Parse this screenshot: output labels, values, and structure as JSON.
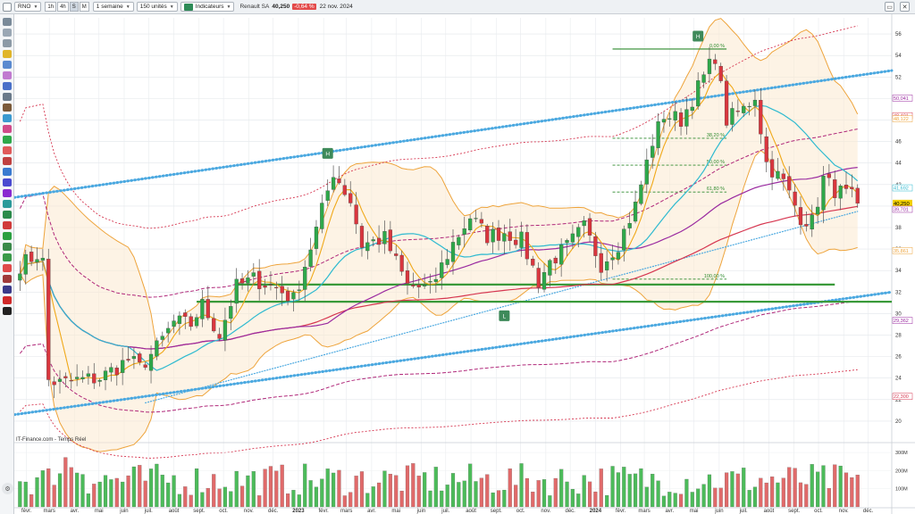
{
  "toolbar": {
    "symbol": "RNO",
    "timeframes": [
      "1h",
      "4h",
      "S",
      "M"
    ],
    "period": "1 semaine",
    "units": "150 unités",
    "indicators_label": "Indicateurs",
    "instrument": "Renault SA",
    "price": "40,250",
    "change": "-0,64 %",
    "date": "22 nov. 2024",
    "window_buttons": [
      "▭",
      "✕"
    ]
  },
  "footer": {
    "source": "IT-Finance.com - Temps Réel"
  },
  "colors": {
    "bull": "#2ea84a",
    "bear": "#d9363e",
    "ma_fast": "#f0a818",
    "ma_mid": "#2ebad0",
    "ma_long": "#9a2aa0",
    "ma_longest": "#d63650",
    "bollinger": "#eea43c",
    "trend": "#4aa8e0",
    "fib": "#2e8a2e",
    "envelope": "#b0287a",
    "support": "#3a9a3a"
  },
  "chart_data": {
    "type": "candlestick",
    "instrument": "Renault SA (RNO)",
    "timeframe": "1 semaine",
    "ylim": [
      18.5,
      57.5
    ],
    "y_ticks": [
      20,
      22,
      24,
      26,
      28,
      30,
      32,
      34,
      36,
      38,
      40,
      42,
      44,
      46,
      48,
      50,
      52,
      54,
      56
    ],
    "y_tick_labels": [
      "20",
      "22",
      "24",
      "26",
      "28",
      "30",
      "32",
      "34",
      "36",
      "38",
      "40",
      "42",
      "44",
      "46",
      "48",
      "50",
      "52",
      "54",
      "56"
    ],
    "x_start": "2022-01-17",
    "x_end": "2024-12-30",
    "x_ticks": [
      {
        "label": "févr.",
        "date": "2022-02-01"
      },
      {
        "label": "mars",
        "date": "2022-03-01"
      },
      {
        "label": "avr.",
        "date": "2022-04-01"
      },
      {
        "label": "mai",
        "date": "2022-05-01"
      },
      {
        "label": "juin",
        "date": "2022-06-01"
      },
      {
        "label": "juil.",
        "date": "2022-07-01"
      },
      {
        "label": "août",
        "date": "2022-08-01"
      },
      {
        "label": "sept.",
        "date": "2022-09-01"
      },
      {
        "label": "oct.",
        "date": "2022-10-01"
      },
      {
        "label": "nov.",
        "date": "2022-11-01"
      },
      {
        "label": "déc.",
        "date": "2022-12-01"
      },
      {
        "label": "2023",
        "date": "2023-01-01",
        "bold": true
      },
      {
        "label": "févr.",
        "date": "2023-02-01"
      },
      {
        "label": "mars",
        "date": "2023-03-01"
      },
      {
        "label": "avr.",
        "date": "2023-04-01"
      },
      {
        "label": "mai",
        "date": "2023-05-01"
      },
      {
        "label": "juin",
        "date": "2023-06-01"
      },
      {
        "label": "juil.",
        "date": "2023-07-01"
      },
      {
        "label": "août",
        "date": "2023-08-01"
      },
      {
        "label": "sept.",
        "date": "2023-09-01"
      },
      {
        "label": "oct.",
        "date": "2023-10-01"
      },
      {
        "label": "nov.",
        "date": "2023-11-01"
      },
      {
        "label": "déc.",
        "date": "2023-12-01"
      },
      {
        "label": "2024",
        "date": "2024-01-01",
        "bold": true
      },
      {
        "label": "févr.",
        "date": "2024-02-01"
      },
      {
        "label": "mars",
        "date": "2024-03-01"
      },
      {
        "label": "avr.",
        "date": "2024-04-01"
      },
      {
        "label": "mai",
        "date": "2024-05-01"
      },
      {
        "label": "juin",
        "date": "2024-06-01"
      },
      {
        "label": "juil.",
        "date": "2024-07-01"
      },
      {
        "label": "août",
        "date": "2024-08-01"
      },
      {
        "label": "sept.",
        "date": "2024-09-01"
      },
      {
        "label": "oct.",
        "date": "2024-10-01"
      },
      {
        "label": "nov.",
        "date": "2024-11-01"
      },
      {
        "label": "déc.",
        "date": "2024-12-01"
      }
    ],
    "close_anchors": [
      {
        "date": "2022-01-24",
        "value": 34.5
      },
      {
        "date": "2022-02-14",
        "value": 35.5
      },
      {
        "date": "2022-02-21",
        "value": 34.8
      },
      {
        "date": "2022-02-28",
        "value": 23.8
      },
      {
        "date": "2022-03-14",
        "value": 23.5
      },
      {
        "date": "2022-04-04",
        "value": 23.8
      },
      {
        "date": "2022-05-02",
        "value": 24.0
      },
      {
        "date": "2022-06-06",
        "value": 25.7
      },
      {
        "date": "2022-06-20",
        "value": 25.0
      },
      {
        "date": "2022-07-11",
        "value": 26.8
      },
      {
        "date": "2022-08-01",
        "value": 29.2
      },
      {
        "date": "2022-08-22",
        "value": 29.0
      },
      {
        "date": "2022-09-05",
        "value": 30.8
      },
      {
        "date": "2022-09-26",
        "value": 28.0
      },
      {
        "date": "2022-10-17",
        "value": 32.5
      },
      {
        "date": "2022-11-07",
        "value": 33.2
      },
      {
        "date": "2022-12-05",
        "value": 32.4
      },
      {
        "date": "2022-12-26",
        "value": 31.3
      },
      {
        "date": "2023-01-23",
        "value": 37.8
      },
      {
        "date": "2023-02-13",
        "value": 43.2
      },
      {
        "date": "2023-03-06",
        "value": 40.5
      },
      {
        "date": "2023-03-20",
        "value": 36.4
      },
      {
        "date": "2023-04-17",
        "value": 37.0
      },
      {
        "date": "2023-05-15",
        "value": 32.6
      },
      {
        "date": "2023-06-12",
        "value": 32.3
      },
      {
        "date": "2023-07-10",
        "value": 36.5
      },
      {
        "date": "2023-07-31",
        "value": 39.0
      },
      {
        "date": "2023-08-21",
        "value": 37.2
      },
      {
        "date": "2023-09-11",
        "value": 37.6
      },
      {
        "date": "2023-10-02",
        "value": 36.8
      },
      {
        "date": "2023-10-23",
        "value": 33.0
      },
      {
        "date": "2023-11-06",
        "value": 34.8
      },
      {
        "date": "2023-11-27",
        "value": 36.2
      },
      {
        "date": "2023-12-18",
        "value": 38.0
      },
      {
        "date": "2024-01-08",
        "value": 34.6
      },
      {
        "date": "2024-01-29",
        "value": 36.5
      },
      {
        "date": "2024-02-19",
        "value": 40.0
      },
      {
        "date": "2024-03-11",
        "value": 46.0
      },
      {
        "date": "2024-03-25",
        "value": 48.5
      },
      {
        "date": "2024-04-15",
        "value": 48.0
      },
      {
        "date": "2024-05-06",
        "value": 51.0
      },
      {
        "date": "2024-05-27",
        "value": 54.0
      },
      {
        "date": "2024-06-10",
        "value": 48.0
      },
      {
        "date": "2024-07-01",
        "value": 49.0
      },
      {
        "date": "2024-07-15",
        "value": 50.3
      },
      {
        "date": "2024-07-29",
        "value": 44.0
      },
      {
        "date": "2024-08-19",
        "value": 42.2
      },
      {
        "date": "2024-09-09",
        "value": 39.0
      },
      {
        "date": "2024-09-23",
        "value": 38.5
      },
      {
        "date": "2024-10-07",
        "value": 42.5
      },
      {
        "date": "2024-10-21",
        "value": 41.5
      },
      {
        "date": "2024-11-11",
        "value": 40.8
      },
      {
        "date": "2024-11-18",
        "value": 40.25
      }
    ],
    "volume_axis": {
      "labels": [
        "300M",
        "200M",
        "100M"
      ],
      "values": [
        300000000,
        200000000,
        100000000
      ]
    },
    "fibonacci": {
      "date_start": "2024-01-22",
      "date_end": "2024-06-10",
      "levels": [
        {
          "label": "0,00 %",
          "value": 54.6
        },
        {
          "label": "38,20 %",
          "value": 46.3
        },
        {
          "label": "50,00 %",
          "value": 43.8
        },
        {
          "label": "61,80 %",
          "value": 41.3
        },
        {
          "label": "100,00 %",
          "value": 33.2
        }
      ]
    },
    "horizontal_lines": [
      {
        "name": "support-upper",
        "value": 32.7,
        "date_start": "2022-10-17",
        "date_end": "2024-10-21"
      },
      {
        "name": "support-lower",
        "value": 31.1,
        "date_start": "2022-08-29",
        "date_end": "2024-12-30"
      }
    ],
    "trendlines": [
      {
        "from": {
          "date": "2022-01-17",
          "value": 40.8
        },
        "to": {
          "date": "2024-12-30",
          "value": 52.6
        },
        "style": "dotted-thick"
      },
      {
        "from": {
          "date": "2022-01-17",
          "value": 20.6
        },
        "to": {
          "date": "2024-12-30",
          "value": 32.0
        },
        "style": "dotted-thick"
      },
      {
        "from": {
          "date": "2022-06-27",
          "value": 21.7
        },
        "to": {
          "date": "2024-11-18",
          "value": 39.5
        },
        "style": "dotted-thin"
      }
    ],
    "markers": [
      {
        "label": "H",
        "date": "2023-02-06",
        "value": 44.9,
        "color": "#3e8a5a"
      },
      {
        "label": "H",
        "date": "2024-05-06",
        "value": 55.8,
        "color": "#3e8a5a"
      },
      {
        "label": "L",
        "date": "2023-09-11",
        "value": 29.8,
        "color": "#3e8a5a"
      }
    ],
    "last_values": [
      {
        "label": "50,041",
        "value": 50.04,
        "color": "#9a2aa0"
      },
      {
        "label": "48,401",
        "value": 48.4,
        "color": "#d63650"
      },
      {
        "label": "48,122",
        "value": 48.12,
        "color": "#eea43c"
      },
      {
        "label": "41,692",
        "value": 41.69,
        "color": "#2ebad0"
      },
      {
        "label": "40,250",
        "value": 40.25,
        "color": "#f2d000",
        "highlight": true
      },
      {
        "label": "39,701",
        "value": 39.7,
        "color": "#9a2aa0"
      },
      {
        "label": "35,861",
        "value": 35.86,
        "color": "#eea43c"
      },
      {
        "label": "29,362",
        "value": 29.36,
        "color": "#9a2aa0"
      },
      {
        "label": "22,300",
        "value": 22.3,
        "color": "#d63650"
      }
    ]
  }
}
